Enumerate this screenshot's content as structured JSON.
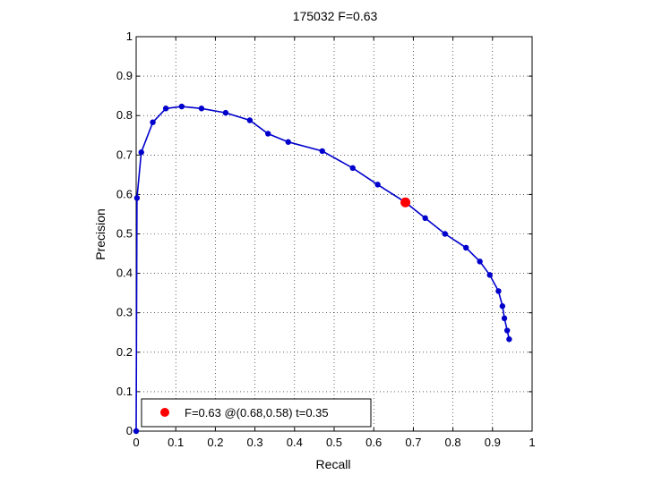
{
  "chart_data": {
    "type": "line",
    "title": "175032 F=0.63",
    "xlabel": "Recall",
    "ylabel": "Precision",
    "xlim": [
      0,
      1
    ],
    "ylim": [
      0,
      1
    ],
    "xticks": [
      0,
      0.1,
      0.2,
      0.3,
      0.4,
      0.5,
      0.6,
      0.7,
      0.8,
      0.9,
      1
    ],
    "yticks": [
      0,
      0.1,
      0.2,
      0.3,
      0.4,
      0.5,
      0.6,
      0.7,
      0.8,
      0.9,
      1
    ],
    "xtick_labels": [
      "0",
      "0.1",
      "0.2",
      "0.3",
      "0.4",
      "0.5",
      "0.6",
      "0.7",
      "0.8",
      "0.9",
      "1"
    ],
    "ytick_labels": [
      "0",
      "0.1",
      "0.2",
      "0.3",
      "0.4",
      "0.5",
      "0.6",
      "0.7",
      "0.8",
      "0.9",
      "1"
    ],
    "grid": true,
    "legend_position": "bottom-left",
    "series": [
      {
        "color": "#0000cc",
        "points": [
          [
            0.0,
            0.0
          ],
          [
            0.002,
            0.591
          ],
          [
            0.013,
            0.707
          ],
          [
            0.042,
            0.783
          ],
          [
            0.075,
            0.818
          ],
          [
            0.115,
            0.823
          ],
          [
            0.165,
            0.818
          ],
          [
            0.226,
            0.807
          ],
          [
            0.287,
            0.788
          ],
          [
            0.333,
            0.754
          ],
          [
            0.384,
            0.733
          ],
          [
            0.47,
            0.71
          ],
          [
            0.547,
            0.667
          ],
          [
            0.61,
            0.625
          ],
          [
            0.68,
            0.58
          ],
          [
            0.73,
            0.54
          ],
          [
            0.78,
            0.5
          ],
          [
            0.833,
            0.465
          ],
          [
            0.868,
            0.43
          ],
          [
            0.893,
            0.396
          ],
          [
            0.915,
            0.355
          ],
          [
            0.925,
            0.317
          ],
          [
            0.93,
            0.286
          ],
          [
            0.937,
            0.255
          ],
          [
            0.942,
            0.233
          ]
        ]
      }
    ],
    "highlight": {
      "recall": 0.68,
      "precision": 0.58,
      "color": "#ff0000",
      "label": "F=0.63 @(0.68,0.58) t=0.35"
    }
  }
}
